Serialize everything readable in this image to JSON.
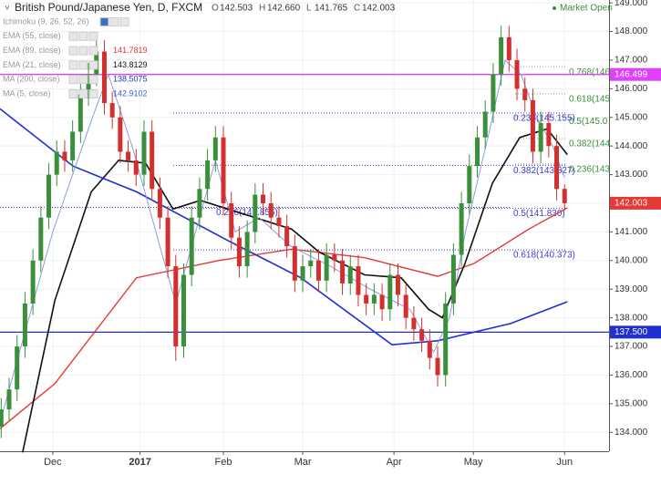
{
  "header": {
    "title": "British Pound/Japanese Yen, D, FXCM",
    "ohlc_labels": [
      "O",
      "H",
      "L",
      "C"
    ],
    "ohlc_values": [
      "142.503",
      "142.660",
      "141.765",
      "142.003"
    ],
    "status": "Market Open"
  },
  "indicators": [
    {
      "name": "Ichimoku (9, 26, 52, 26)"
    },
    {
      "name": "EMA (55, close)"
    },
    {
      "name": "EMA (89, close)",
      "value": "141.7819",
      "color": "#e53935"
    },
    {
      "name": "EMA (21, close)",
      "value": "143.8129",
      "color": "#111111"
    },
    {
      "name": "MA (200, close)",
      "value": "138.5075",
      "color": "#1f2fd0"
    },
    {
      "name": "MA (5, close)",
      "value": "142.9102",
      "color": "#3b5bdb"
    }
  ],
  "chart_data": {
    "type": "candlestick",
    "up_color": "#3b8f3b",
    "down_color": "#d32f2f",
    "xlim": [
      -13.3,
      140.2
    ],
    "ylim": [
      133.34,
      149.1
    ],
    "xticks": [
      {
        "value": 0,
        "label": "Dec"
      },
      {
        "value": 22,
        "label": "2017"
      },
      {
        "value": 43,
        "label": "Feb"
      },
      {
        "value": 63,
        "label": "Mar"
      },
      {
        "value": 86,
        "label": "Apr"
      },
      {
        "value": 106,
        "label": "May"
      },
      {
        "value": 129,
        "label": "Jun"
      }
    ],
    "yticks": [
      {
        "value": 134,
        "label": "134.000"
      },
      {
        "value": 135,
        "label": "135.000"
      },
      {
        "value": 136,
        "label": "136.000"
      },
      {
        "value": 137,
        "label": "137.000"
      },
      {
        "value": 138,
        "label": "138.000"
      },
      {
        "value": 139,
        "label": "139.000"
      },
      {
        "value": 140,
        "label": "140.000"
      },
      {
        "value": 141,
        "label": "141.000"
      },
      {
        "value": 142,
        "label": "142.000"
      },
      {
        "value": 143,
        "label": "143.000"
      },
      {
        "value": 144,
        "label": "144.000"
      },
      {
        "value": 145,
        "label": "145.000"
      },
      {
        "value": 146,
        "label": "146.000"
      },
      {
        "value": 147,
        "label": "147.000"
      },
      {
        "value": 148,
        "label": "148.000"
      },
      {
        "value": 149,
        "label": "149.000"
      }
    ],
    "x": [
      -13,
      -11,
      -9,
      -7,
      -5,
      -3,
      -1,
      1,
      3,
      5,
      7,
      9,
      11,
      13,
      15,
      17,
      19,
      21,
      23,
      25,
      27,
      29,
      31,
      33,
      35,
      37,
      39,
      41,
      43,
      45,
      47,
      49,
      51,
      53,
      55,
      57,
      59,
      61,
      63,
      65,
      67,
      69,
      71,
      73,
      75,
      77,
      79,
      81,
      83,
      85,
      87,
      89,
      91,
      93,
      95,
      97,
      99,
      101,
      103,
      105,
      107,
      109,
      111,
      113,
      115,
      117,
      119,
      121,
      123,
      125,
      127,
      129
    ],
    "open": [
      134.2,
      134.8,
      135.5,
      137.0,
      138.5,
      140.0,
      141.5,
      143.0,
      143.8,
      143.5,
      144.5,
      145.8,
      146.5,
      147.3,
      145.5,
      145.0,
      143.8,
      143.5,
      143.0,
      144.5,
      142.5,
      141.5,
      139.8,
      137.0,
      139.5,
      141.5,
      142.5,
      143.5,
      144.3,
      142.0,
      140.8,
      139.8,
      141.0,
      142.3,
      142.0,
      141.5,
      141.2,
      140.5,
      139.3,
      139.8,
      140.0,
      139.3,
      140.2,
      140.0,
      139.2,
      139.8,
      138.8,
      138.5,
      138.8,
      138.3,
      139.5,
      138.8,
      138.0,
      137.6,
      137.2,
      136.6,
      136.0,
      138.5,
      140.2,
      142.0,
      143.3,
      144.3,
      145.2,
      146.5,
      147.8,
      147.0,
      146.0,
      145.6,
      143.8,
      144.8,
      144.0,
      142.503
    ],
    "high": [
      135.2,
      135.9,
      137.4,
      138.9,
      140.4,
      141.9,
      143.4,
      144.2,
      144.2,
      144.9,
      146.2,
      146.9,
      147.7,
      147.7,
      145.9,
      145.4,
      144.2,
      143.9,
      144.9,
      144.9,
      142.9,
      141.9,
      140.2,
      139.9,
      141.9,
      142.9,
      143.9,
      144.7,
      144.7,
      142.4,
      141.2,
      141.4,
      142.7,
      142.7,
      142.4,
      141.9,
      141.6,
      140.9,
      140.2,
      140.4,
      140.4,
      140.6,
      140.6,
      140.4,
      140.2,
      140.2,
      139.2,
      139.2,
      139.2,
      139.9,
      139.9,
      139.2,
      138.4,
      138.0,
      137.6,
      137.0,
      138.9,
      140.6,
      142.4,
      143.7,
      144.7,
      145.6,
      146.9,
      148.2,
      148.2,
      147.4,
      146.4,
      146.0,
      145.2,
      145.2,
      144.4,
      142.66
    ],
    "low": [
      133.8,
      134.4,
      135.1,
      136.6,
      138.1,
      139.6,
      141.1,
      142.6,
      143.1,
      143.1,
      144.1,
      145.4,
      146.1,
      145.1,
      144.6,
      143.4,
      143.1,
      142.6,
      142.6,
      142.1,
      141.1,
      139.4,
      136.5,
      136.6,
      139.1,
      141.1,
      142.1,
      143.1,
      141.6,
      140.4,
      139.4,
      139.4,
      140.6,
      141.6,
      141.1,
      140.8,
      140.1,
      138.9,
      138.9,
      139.4,
      138.9,
      138.9,
      139.6,
      138.8,
      138.8,
      138.4,
      138.1,
      138.1,
      137.9,
      137.9,
      138.4,
      137.6,
      137.2,
      136.8,
      136.2,
      135.6,
      135.6,
      138.1,
      139.8,
      141.6,
      142.9,
      143.9,
      144.8,
      146.1,
      146.6,
      145.6,
      145.2,
      143.4,
      143.4,
      143.6,
      142.1,
      141.765
    ],
    "close": [
      134.8,
      135.5,
      137.0,
      138.5,
      140.0,
      141.5,
      143.0,
      143.8,
      143.5,
      144.5,
      145.8,
      146.5,
      147.3,
      145.5,
      145.0,
      143.8,
      143.5,
      143.0,
      144.5,
      142.5,
      141.5,
      139.8,
      137.0,
      139.5,
      141.5,
      142.5,
      143.5,
      144.3,
      142.0,
      140.8,
      139.8,
      141.0,
      142.3,
      142.0,
      141.5,
      141.2,
      140.5,
      139.3,
      139.8,
      140.0,
      139.3,
      140.2,
      140.0,
      139.2,
      139.8,
      138.8,
      138.5,
      138.8,
      138.3,
      139.5,
      138.8,
      138.0,
      137.6,
      137.2,
      136.6,
      136.0,
      138.5,
      140.2,
      142.0,
      143.3,
      144.3,
      145.2,
      146.5,
      147.8,
      147.0,
      146.0,
      145.6,
      143.8,
      144.8,
      144.0,
      142.5,
      142.003
    ],
    "series": [
      {
        "color": "#e53935",
        "width": 1.4,
        "x": [
          -13.3,
          0.5,
          21.1,
          41.8,
          60.2,
          78.6,
          97,
          106.2,
          120,
          129.7
        ],
        "values": [
          134.13,
          135.7,
          139.4,
          140.0,
          140.4,
          140.1,
          139.45,
          139.9,
          141.1,
          141.84
        ]
      },
      {
        "color": "#111111",
        "width": 1.6,
        "x": [
          -7.6,
          0.5,
          9.7,
          16.6,
          23.4,
          30.3,
          37.2,
          44.1,
          51,
          60.2,
          67.1,
          78.6,
          87.8,
          94.7,
          98.2,
          103.9,
          110.8,
          117.7,
          124.6,
          129.7
        ],
        "values": [
          133.3,
          138.6,
          142.4,
          143.5,
          143.4,
          141.8,
          142.1,
          141.8,
          141.5,
          141.1,
          140.3,
          139.5,
          139.4,
          138.3,
          138.0,
          139.9,
          142.7,
          144.3,
          144.6,
          143.7
        ]
      },
      {
        "color": "#1f2fd0",
        "width": 1.6,
        "x": [
          -13.3,
          5.1,
          21.1,
          44.1,
          62.5,
          85.5,
          97,
          115.4,
          129.7
        ],
        "values": [
          145.3,
          143.3,
          142.4,
          140.7,
          139.4,
          137.06,
          137.2,
          137.8,
          138.56
        ]
      },
      {
        "color": "#7f95e0",
        "width": 0.9,
        "x": [
          -13,
          0,
          10,
          14,
          20,
          26,
          31,
          36,
          41,
          46,
          52,
          60,
          70,
          80,
          90,
          96,
          100,
          104,
          110,
          114,
          118,
          122,
          126,
          129
        ],
        "values": [
          134.5,
          141,
          145,
          146.5,
          144,
          141,
          138.5,
          141,
          143.5,
          141,
          141.5,
          140.5,
          139.8,
          139,
          138.3,
          136.8,
          138,
          141,
          144.5,
          147,
          146.5,
          145,
          144,
          142.9
        ]
      }
    ],
    "price_lines": [
      {
        "value": 146.499,
        "label": "146.499",
        "color": "#e040fb"
      },
      {
        "value": 137.5,
        "label": "137.500",
        "color": "#1f2fd0"
      }
    ],
    "last_price": {
      "value": 142.003,
      "label": "142.003",
      "color": "#e53935"
    },
    "fib_right": [
      {
        "value": 146.77,
        "label": "0.768(146"
      },
      {
        "value": 145.82,
        "label": "0.618(145"
      },
      {
        "value": 145.05,
        "label": "0.5(145.0"
      },
      {
        "value": 144.26,
        "label": "0.382(144"
      },
      {
        "value": 143.37,
        "label": "0.236(143"
      }
    ],
    "fib_mid": [
      {
        "value": 145.155,
        "label": "0.236(145.155)"
      },
      {
        "value": 143.327,
        "label": "0.382(143.327)"
      },
      {
        "value": 141.83,
        "label": "0.5(141.830)"
      },
      {
        "value": 140.373,
        "label": "0.618(140.373)"
      }
    ],
    "fib_left": [
      {
        "value": 141.856,
        "label": "0.236(141.856)"
      }
    ]
  }
}
